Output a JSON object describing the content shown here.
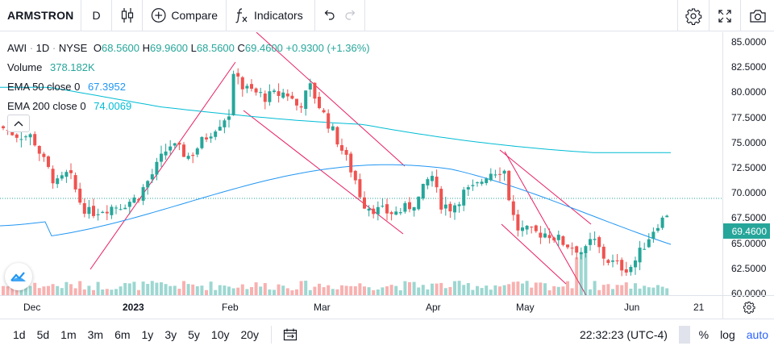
{
  "toolbar": {
    "symbol": "ARMSTRON",
    "interval": "D",
    "compare_label": "Compare",
    "indicators_label": "Indicators",
    "icons": [
      "candles-icon",
      "plus-circle-icon",
      "fx-icon",
      "undo-icon",
      "redo-icon",
      "gear-icon",
      "fullscreen-icon",
      "camera-icon"
    ]
  },
  "legend": {
    "symbol": "AWI",
    "interval": "1D",
    "exchange": "NYSE",
    "open_k": "O",
    "open": "68.5600",
    "high_k": "H",
    "high": "69.9600",
    "low_k": "L",
    "low": "68.5600",
    "close_k": "C",
    "close": "69.4600",
    "change": "+0.9300 (+1.36%)",
    "volume_label": "Volume",
    "volume": "378.182K",
    "ema50_label": "EMA 50 close 0",
    "ema50": "67.3952",
    "ema200_label": "EMA 200 close 0",
    "ema200": "74.0069"
  },
  "price_axis": {
    "labels": [
      "85.0000",
      "82.5000",
      "80.0000",
      "77.5000",
      "75.0000",
      "72.5000",
      "70.0000",
      "67.5000",
      "65.0000",
      "62.5000",
      "60.0000"
    ],
    "last_price": "69.4600"
  },
  "time_axis": {
    "labels": [
      "Dec",
      "2023",
      "Feb",
      "Mar",
      "Apr",
      "May",
      "Jun",
      "21"
    ]
  },
  "bottom": {
    "ranges": [
      "1d",
      "5d",
      "1m",
      "3m",
      "6m",
      "1y",
      "3y",
      "5y",
      "10y",
      "20y"
    ],
    "clock": "22:32:23 (UTC-4)",
    "percent": "%",
    "log": "log",
    "auto": "auto"
  },
  "colors": {
    "up": "#26a69a",
    "down": "#ef5350",
    "ema50": "#2196f3",
    "ema200": "#00bcd4",
    "channel": "#e91e63",
    "accent": "#2962ff"
  },
  "chart_data": {
    "type": "candlestick",
    "symbol": "AWI",
    "ylim": [
      60,
      85
    ],
    "last_price": 69.46,
    "series": [
      {
        "name": "EMA 50 close 0",
        "last": 67.3952
      },
      {
        "name": "EMA 200 close 0",
        "last": 74.0069
      }
    ]
  }
}
